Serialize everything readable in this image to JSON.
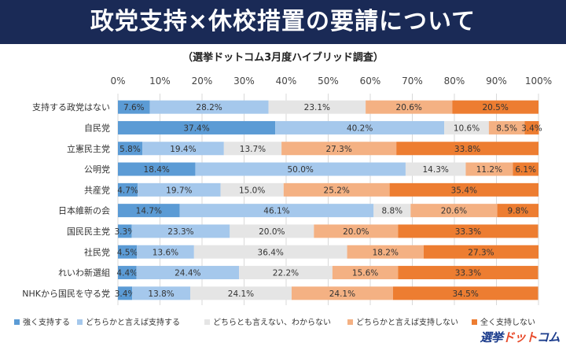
{
  "header": {
    "title": "政党支持×休校措置の要請について",
    "subtitle": "（選挙ドットコム3月度ハイブリッド調査）"
  },
  "logo": {
    "part1": "選挙",
    "part2": "ドット",
    "part3": "コム"
  },
  "chart_data": {
    "type": "bar",
    "orientation": "horizontal",
    "stacked": true,
    "percent": true,
    "xlim": [
      0,
      100
    ],
    "x_ticks": [
      "0%",
      "10%",
      "20%",
      "30%",
      "40%",
      "50%",
      "60%",
      "70%",
      "80%",
      "90%",
      "100%"
    ],
    "grid": true,
    "legend_position": "bottom",
    "categories": [
      "支持する政党はない",
      "自民党",
      "立憲民主党",
      "公明党",
      "共産党",
      "日本維新の会",
      "国民民主党",
      "社民党",
      "れいわ新選組",
      "NHKから国民を守る党"
    ],
    "series": [
      {
        "name": "強く支持する",
        "color": "#5b9bd5",
        "values": [
          7.6,
          37.4,
          5.8,
          18.4,
          4.7,
          14.7,
          3.3,
          4.5,
          4.4,
          3.4
        ]
      },
      {
        "name": "どちらかと言えば支持する",
        "color": "#a5c8ec",
        "values": [
          28.2,
          40.2,
          19.4,
          50.0,
          19.7,
          46.1,
          23.3,
          13.6,
          24.4,
          13.8
        ]
      },
      {
        "name": "どちらとも言えない、わからない",
        "color": "#e5e5e5",
        "values": [
          23.1,
          10.6,
          13.7,
          14.3,
          15.0,
          8.8,
          20.0,
          36.4,
          22.2,
          24.1
        ]
      },
      {
        "name": "どちらかと言えば支持しない",
        "color": "#f4b183",
        "values": [
          20.6,
          8.5,
          27.3,
          11.2,
          25.2,
          20.6,
          20.0,
          18.2,
          15.6,
          24.1
        ]
      },
      {
        "name": "全く支持しない",
        "color": "#ed7d31",
        "values": [
          20.5,
          3.4,
          33.8,
          6.1,
          35.4,
          9.8,
          33.3,
          27.3,
          33.3,
          34.5
        ]
      }
    ]
  }
}
